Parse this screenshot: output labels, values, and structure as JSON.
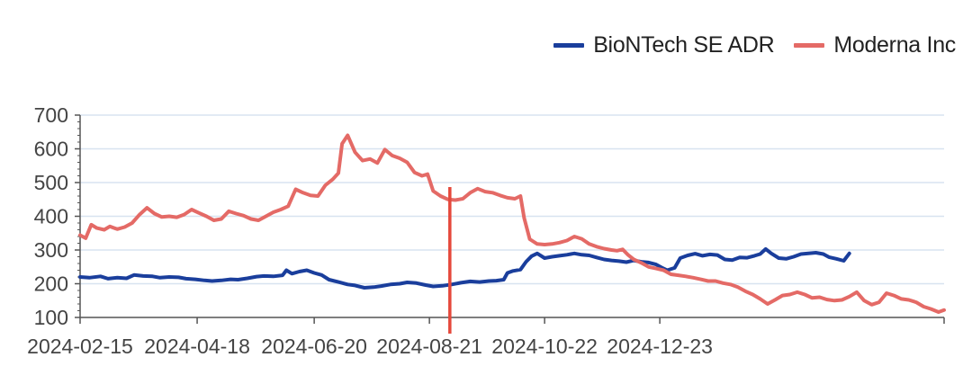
{
  "chart_data": {
    "type": "line",
    "title": "",
    "xlabel": "",
    "ylabel": "",
    "ylim": [
      100,
      700
    ],
    "yticks": [
      "100",
      "200",
      "300",
      "400",
      "500",
      "600",
      "700"
    ],
    "xticks": [
      "2024-02-15",
      "2024-04-18",
      "2024-06-20",
      "2024-08-21",
      "2024-10-22",
      "2024-12-23"
    ],
    "grid": "horizontal",
    "legend_position": "top-right",
    "vline_date": "2024-09-01",
    "colors": {
      "biontech": "#1a3e9c",
      "moderna": "#e46a66",
      "vline": "#e5483b",
      "grid": "#d8e3f0",
      "axis": "#555555"
    },
    "series": [
      {
        "name": "BioNTech SE ADR",
        "points": [
          [
            "2024-02-15",
            220
          ],
          [
            "2024-02-20",
            218
          ],
          [
            "2024-02-26",
            222
          ],
          [
            "2024-03-01",
            215
          ],
          [
            "2024-03-06",
            218
          ],
          [
            "2024-03-11",
            216
          ],
          [
            "2024-03-15",
            226
          ],
          [
            "2024-03-20",
            223
          ],
          [
            "2024-03-25",
            222
          ],
          [
            "2024-03-29",
            218
          ],
          [
            "2024-04-03",
            220
          ],
          [
            "2024-04-08",
            219
          ],
          [
            "2024-04-12",
            215
          ],
          [
            "2024-04-17",
            213
          ],
          [
            "2024-04-22",
            210
          ],
          [
            "2024-04-26",
            208
          ],
          [
            "2024-05-01",
            210
          ],
          [
            "2024-05-06",
            213
          ],
          [
            "2024-05-10",
            212
          ],
          [
            "2024-05-15",
            216
          ],
          [
            "2024-05-20",
            221
          ],
          [
            "2024-05-24",
            223
          ],
          [
            "2024-05-29",
            222
          ],
          [
            "2024-06-03",
            225
          ],
          [
            "2024-06-05",
            240
          ],
          [
            "2024-06-08",
            230
          ],
          [
            "2024-06-12",
            236
          ],
          [
            "2024-06-16",
            240
          ],
          [
            "2024-06-20",
            232
          ],
          [
            "2024-06-24",
            226
          ],
          [
            "2024-06-28",
            212
          ],
          [
            "2024-07-03",
            205
          ],
          [
            "2024-07-08",
            198
          ],
          [
            "2024-07-12",
            195
          ],
          [
            "2024-07-17",
            188
          ],
          [
            "2024-07-22",
            190
          ],
          [
            "2024-07-26",
            193
          ],
          [
            "2024-07-31",
            198
          ],
          [
            "2024-08-05",
            200
          ],
          [
            "2024-08-09",
            204
          ],
          [
            "2024-08-14",
            202
          ],
          [
            "2024-08-19",
            196
          ],
          [
            "2024-08-23",
            192
          ],
          [
            "2024-08-28",
            194
          ],
          [
            "2024-09-02",
            198
          ],
          [
            "2024-09-07",
            203
          ],
          [
            "2024-09-12",
            207
          ],
          [
            "2024-09-17",
            205
          ],
          [
            "2024-09-22",
            208
          ],
          [
            "2024-09-26",
            209
          ],
          [
            "2024-09-30",
            212
          ],
          [
            "2024-10-02",
            232
          ],
          [
            "2024-10-05",
            238
          ],
          [
            "2024-10-09",
            242
          ],
          [
            "2024-10-12",
            265
          ],
          [
            "2024-10-15",
            282
          ],
          [
            "2024-10-18",
            290
          ],
          [
            "2024-10-22",
            276
          ],
          [
            "2024-10-26",
            280
          ],
          [
            "2024-10-30",
            283
          ],
          [
            "2024-11-03",
            286
          ],
          [
            "2024-11-07",
            290
          ],
          [
            "2024-11-11",
            286
          ],
          [
            "2024-11-15",
            284
          ],
          [
            "2024-11-19",
            278
          ],
          [
            "2024-11-23",
            272
          ],
          [
            "2024-11-27",
            269
          ],
          [
            "2024-12-01",
            267
          ],
          [
            "2024-12-05",
            264
          ],
          [
            "2024-12-09",
            269
          ],
          [
            "2024-12-13",
            265
          ],
          [
            "2024-12-17",
            263
          ],
          [
            "2024-12-21",
            257
          ],
          [
            "2024-12-24",
            248
          ],
          [
            "2024-12-27",
            240
          ],
          [
            "2024-12-31",
            247
          ],
          [
            "2025-01-03",
            276
          ],
          [
            "2025-01-07",
            284
          ],
          [
            "2025-01-11",
            289
          ],
          [
            "2025-01-15",
            283
          ],
          [
            "2025-01-19",
            287
          ],
          [
            "2025-01-23",
            285
          ],
          [
            "2025-01-27",
            272
          ],
          [
            "2025-01-31",
            270
          ],
          [
            "2025-02-04",
            278
          ],
          [
            "2025-02-08",
            277
          ],
          [
            "2025-02-12",
            283
          ],
          [
            "2025-02-15",
            288
          ],
          [
            "2025-02-18",
            303
          ],
          [
            "2025-02-21",
            290
          ],
          [
            "2025-02-25",
            276
          ],
          [
            "2025-03-01",
            274
          ],
          [
            "2025-03-05",
            280
          ],
          [
            "2025-03-09",
            288
          ],
          [
            "2025-03-13",
            290
          ],
          [
            "2025-03-17",
            292
          ],
          [
            "2025-03-21",
            288
          ],
          [
            "2025-03-24",
            279
          ],
          [
            "2025-03-28",
            274
          ],
          [
            "2025-04-01",
            268
          ],
          [
            "2025-04-04",
            290
          ]
        ]
      },
      {
        "name": "Moderna Inc",
        "points": [
          [
            "2024-02-15",
            344
          ],
          [
            "2024-02-18",
            335
          ],
          [
            "2024-02-21",
            375
          ],
          [
            "2024-02-24",
            365
          ],
          [
            "2024-02-28",
            360
          ],
          [
            "2024-03-02",
            370
          ],
          [
            "2024-03-06",
            362
          ],
          [
            "2024-03-10",
            368
          ],
          [
            "2024-03-14",
            380
          ],
          [
            "2024-03-18",
            405
          ],
          [
            "2024-03-22",
            425
          ],
          [
            "2024-03-26",
            408
          ],
          [
            "2024-03-30",
            398
          ],
          [
            "2024-04-03",
            400
          ],
          [
            "2024-04-07",
            397
          ],
          [
            "2024-04-11",
            405
          ],
          [
            "2024-04-15",
            420
          ],
          [
            "2024-04-19",
            410
          ],
          [
            "2024-04-23",
            400
          ],
          [
            "2024-04-27",
            388
          ],
          [
            "2024-05-01",
            392
          ],
          [
            "2024-05-05",
            415
          ],
          [
            "2024-05-09",
            408
          ],
          [
            "2024-05-13",
            402
          ],
          [
            "2024-05-17",
            392
          ],
          [
            "2024-05-21",
            388
          ],
          [
            "2024-05-25",
            400
          ],
          [
            "2024-05-29",
            412
          ],
          [
            "2024-06-02",
            420
          ],
          [
            "2024-06-06",
            430
          ],
          [
            "2024-06-10",
            480
          ],
          [
            "2024-06-14",
            470
          ],
          [
            "2024-06-18",
            462
          ],
          [
            "2024-06-22",
            460
          ],
          [
            "2024-06-26",
            492
          ],
          [
            "2024-06-30",
            510
          ],
          [
            "2024-07-03",
            528
          ],
          [
            "2024-07-05",
            615
          ],
          [
            "2024-07-08",
            640
          ],
          [
            "2024-07-12",
            590
          ],
          [
            "2024-07-16",
            565
          ],
          [
            "2024-07-20",
            570
          ],
          [
            "2024-07-24",
            558
          ],
          [
            "2024-07-28",
            598
          ],
          [
            "2024-08-01",
            580
          ],
          [
            "2024-08-05",
            572
          ],
          [
            "2024-08-09",
            560
          ],
          [
            "2024-08-13",
            530
          ],
          [
            "2024-08-17",
            520
          ],
          [
            "2024-08-20",
            525
          ],
          [
            "2024-08-23",
            475
          ],
          [
            "2024-08-27",
            460
          ],
          [
            "2024-08-31",
            450
          ],
          [
            "2024-09-04",
            448
          ],
          [
            "2024-09-08",
            452
          ],
          [
            "2024-09-12",
            470
          ],
          [
            "2024-09-16",
            482
          ],
          [
            "2024-09-20",
            473
          ],
          [
            "2024-09-24",
            470
          ],
          [
            "2024-09-28",
            462
          ],
          [
            "2024-10-02",
            455
          ],
          [
            "2024-10-06",
            452
          ],
          [
            "2024-10-09",
            460
          ],
          [
            "2024-10-11",
            395
          ],
          [
            "2024-10-14",
            332
          ],
          [
            "2024-10-18",
            318
          ],
          [
            "2024-10-22",
            316
          ],
          [
            "2024-10-26",
            318
          ],
          [
            "2024-10-30",
            322
          ],
          [
            "2024-11-03",
            328
          ],
          [
            "2024-11-07",
            340
          ],
          [
            "2024-11-11",
            333
          ],
          [
            "2024-11-15",
            318
          ],
          [
            "2024-11-19",
            310
          ],
          [
            "2024-11-23",
            304
          ],
          [
            "2024-11-27",
            300
          ],
          [
            "2024-11-30",
            298
          ],
          [
            "2024-12-03",
            302
          ],
          [
            "2024-12-06",
            285
          ],
          [
            "2024-12-09",
            272
          ],
          [
            "2024-12-13",
            262
          ],
          [
            "2024-12-17",
            250
          ],
          [
            "2024-12-21",
            245
          ],
          [
            "2024-12-25",
            240
          ],
          [
            "2024-12-29",
            228
          ],
          [
            "2025-01-02",
            225
          ],
          [
            "2025-01-06",
            222
          ],
          [
            "2025-01-10",
            218
          ],
          [
            "2025-01-14",
            213
          ],
          [
            "2025-01-18",
            208
          ],
          [
            "2025-01-22",
            208
          ],
          [
            "2025-01-26",
            202
          ],
          [
            "2025-01-30",
            198
          ],
          [
            "2025-02-03",
            190
          ],
          [
            "2025-02-07",
            178
          ],
          [
            "2025-02-11",
            168
          ],
          [
            "2025-02-15",
            155
          ],
          [
            "2025-02-19",
            140
          ],
          [
            "2025-02-23",
            152
          ],
          [
            "2025-02-27",
            165
          ],
          [
            "2025-03-03",
            168
          ],
          [
            "2025-03-07",
            175
          ],
          [
            "2025-03-11",
            168
          ],
          [
            "2025-03-15",
            158
          ],
          [
            "2025-03-19",
            160
          ],
          [
            "2025-03-23",
            153
          ],
          [
            "2025-03-27",
            150
          ],
          [
            "2025-03-31",
            152
          ],
          [
            "2025-04-04",
            162
          ],
          [
            "2025-04-08",
            175
          ],
          [
            "2025-04-12",
            150
          ],
          [
            "2025-04-16",
            138
          ],
          [
            "2025-04-20",
            145
          ],
          [
            "2025-04-24",
            172
          ],
          [
            "2025-04-28",
            165
          ],
          [
            "2025-05-02",
            155
          ],
          [
            "2025-05-06",
            152
          ],
          [
            "2025-05-10",
            145
          ],
          [
            "2025-05-14",
            132
          ],
          [
            "2025-05-18",
            125
          ],
          [
            "2025-05-22",
            116
          ],
          [
            "2025-05-25",
            122
          ]
        ]
      }
    ]
  }
}
